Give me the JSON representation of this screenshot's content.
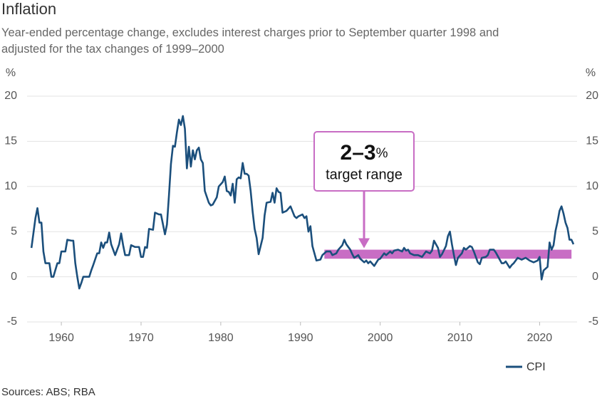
{
  "chart_data": {
    "type": "line",
    "title": "Inflation",
    "subtitle": "Year-ended percentage change, excludes interest charges prior to September quarter 1998 and adjusted for the tax changes of 1999–2000",
    "y_unit": "%",
    "mirror_y_axis": true,
    "grid": true,
    "xlim": [
      1955.7,
      2024.7
    ],
    "xticks": [
      1960,
      1970,
      1980,
      1990,
      2000,
      2010,
      2020
    ],
    "ylim": [
      -5,
      20
    ],
    "yticks": [
      -5,
      0,
      5,
      10,
      15,
      20
    ],
    "legend": "bottom-right",
    "x": [
      1956.25,
      1956.75,
      1957,
      1957.25,
      1957.5,
      1957.75,
      1958,
      1958.5,
      1958.75,
      1959,
      1959.5,
      1959.75,
      1960,
      1960.5,
      1960.75,
      1961.25,
      1961.5,
      1961.75,
      1962,
      1962.25,
      1962.5,
      1962.75,
      1963.5,
      1963.75,
      1964,
      1964.5,
      1964.75,
      1965,
      1965.25,
      1965.5,
      1965.75,
      1966,
      1966.25,
      1966.5,
      1966.75,
      1967,
      1967.25,
      1967.5,
      1967.75,
      1968,
      1968.5,
      1968.75,
      1969.25,
      1969.75,
      1970,
      1970.25,
      1970.5,
      1970.75,
      1971,
      1971.5,
      1971.75,
      1972.25,
      1972.5,
      1972.75,
      1973,
      1973.25,
      1973.5,
      1973.75,
      1974,
      1974.25,
      1974.5,
      1974.75,
      1975,
      1975.25,
      1975.5,
      1975.75,
      1976,
      1976.25,
      1976.5,
      1976.75,
      1977,
      1977.25,
      1977.5,
      1977.75,
      1978,
      1978.5,
      1978.75,
      1979,
      1979.5,
      1979.75,
      1980.25,
      1980.5,
      1980.75,
      1981,
      1981.25,
      1981.5,
      1981.75,
      1982,
      1982.25,
      1982.5,
      1982.75,
      1983,
      1983.25,
      1983.5,
      1983.75,
      1984,
      1984.25,
      1984.5,
      1984.75,
      1985.25,
      1985.5,
      1985.75,
      1986.25,
      1986.5,
      1986.75,
      1987,
      1987.25,
      1987.5,
      1987.75,
      1988.25,
      1988.75,
      1989.25,
      1989.5,
      1989.75,
      1990.25,
      1990.5,
      1990.75,
      1991,
      1991.25,
      1991.5,
      1991.75,
      1992,
      1992.5,
      1992.75,
      1993.25,
      1993.75,
      1994,
      1994.5,
      1994.75,
      1995.25,
      1995.5,
      1995.75,
      1996.25,
      1996.5,
      1996.75,
      1997.25,
      1997.5,
      1998,
      1998.25,
      1998.5,
      1998.75,
      1999.25,
      1999.75,
      2000,
      2000.5,
      2000.75,
      2001.25,
      2001.5,
      2001.75,
      2002.25,
      2002.75,
      2003,
      2003.25,
      2003.5,
      2003.75,
      2004.25,
      2004.75,
      2005.25,
      2005.75,
      2006.25,
      2006.5,
      2006.75,
      2007.25,
      2007.5,
      2007.75,
      2008.25,
      2008.5,
      2008.75,
      2009,
      2009.25,
      2009.5,
      2009.75,
      2010.25,
      2010.5,
      2010.75,
      2011.25,
      2011.5,
      2011.75,
      2012.25,
      2012.5,
      2012.75,
      2013.25,
      2013.5,
      2013.75,
      2014.25,
      2014.5,
      2014.75,
      2015.25,
      2015.5,
      2015.75,
      2016.25,
      2016.5,
      2016.75,
      2017.25,
      2017.75,
      2018.25,
      2018.75,
      2019.25,
      2019.75,
      2020,
      2020.25,
      2020.5,
      2020.75,
      2021,
      2021.25,
      2021.5,
      2021.75,
      2022,
      2022.25,
      2022.5,
      2022.75,
      2023,
      2023.25,
      2023.5,
      2023.75,
      2024,
      2024.25
    ],
    "series": [
      {
        "name": "CPI",
        "color": "#1b4f7c",
        "values": [
          3.2,
          6.5,
          7.6,
          6.0,
          6.0,
          2.8,
          1.5,
          1.5,
          0.0,
          0.0,
          1.5,
          1.5,
          2.8,
          2.8,
          4.1,
          4.0,
          4.0,
          1.5,
          0.0,
          -1.3,
          -0.7,
          0.0,
          0.0,
          0.7,
          1.3,
          2.6,
          2.6,
          3.8,
          3.2,
          3.8,
          3.8,
          4.9,
          3.6,
          3.0,
          2.4,
          3.0,
          3.6,
          4.8,
          3.5,
          2.4,
          2.4,
          3.5,
          3.3,
          3.3,
          2.2,
          2.2,
          3.3,
          3.2,
          5.3,
          5.2,
          7.1,
          6.9,
          6.9,
          5.8,
          4.7,
          5.8,
          9.0,
          12.5,
          14.5,
          14.4,
          16.0,
          17.4,
          16.8,
          17.8,
          16.4,
          12.0,
          14.4,
          12.2,
          14.0,
          13.0,
          14.0,
          14.3,
          13.0,
          12.6,
          9.5,
          8.2,
          7.9,
          8.0,
          8.8,
          10.0,
          10.5,
          11.1,
          9.5,
          9.4,
          9.0,
          10.3,
          8.2,
          10.8,
          11.0,
          10.9,
          12.6,
          11.4,
          11.4,
          11.2,
          9.5,
          7.2,
          5.3,
          4.3,
          2.5,
          4.3,
          6.8,
          8.2,
          8.3,
          9.3,
          8.2,
          9.8,
          9.4,
          9.3,
          7.1,
          7.3,
          7.8,
          6.7,
          6.5,
          6.7,
          6.9,
          6.5,
          6.7,
          5.0,
          5.6,
          3.4,
          2.6,
          1.8,
          1.9,
          2.4,
          2.8,
          2.8,
          2.4,
          2.6,
          3.0,
          3.5,
          4.1,
          3.6,
          3.0,
          2.5,
          2.1,
          2.4,
          2.0,
          1.6,
          1.8,
          1.5,
          1.7,
          1.2,
          1.9,
          2.0,
          2.6,
          2.4,
          2.8,
          2.6,
          2.9,
          3.0,
          2.8,
          3.2,
          2.9,
          3.0,
          2.6,
          2.4,
          2.4,
          2.2,
          2.8,
          2.6,
          2.9,
          4.0,
          3.2,
          2.2,
          2.5,
          3.4,
          4.5,
          5.0,
          3.6,
          2.4,
          1.3,
          2.1,
          2.6,
          3.2,
          3.0,
          3.4,
          3.3,
          2.8,
          1.6,
          1.4,
          2.1,
          2.2,
          2.4,
          3.0,
          3.0,
          2.7,
          2.3,
          1.5,
          1.5,
          1.7,
          1.0,
          1.3,
          1.5,
          2.1,
          1.9,
          2.1,
          1.8,
          1.6,
          1.8,
          2.2,
          -0.3,
          0.7,
          0.9,
          1.1,
          3.8,
          3.0,
          3.5,
          5.1,
          6.1,
          7.3,
          7.8,
          7.0,
          6.0,
          5.4,
          4.1,
          4.1,
          3.6
        ]
      }
    ],
    "target_band": {
      "low": 2,
      "high": 3,
      "start": 1993,
      "end": 2024,
      "color": "#c86dc4",
      "label_range": "2–3",
      "label_unit": "%",
      "label_text": "target range"
    },
    "source": "Sources: ABS; RBA"
  }
}
